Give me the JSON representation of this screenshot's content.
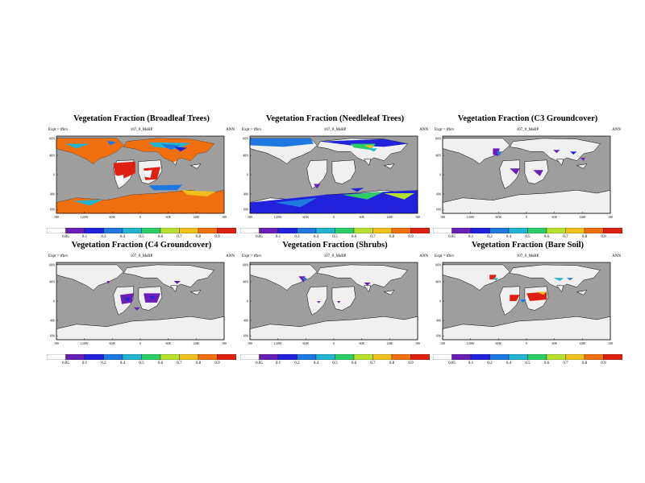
{
  "panels": [
    {
      "title": "Vegetation Fraction (Broadleaf Trees)",
      "expt": "Expt = tfhrv",
      "run": "107_0_MsBP",
      "season": "ANN",
      "lat_labels": [
        "60N",
        "40N",
        "0",
        "40S",
        "60S"
      ],
      "lon_labels": [
        "180",
        "120W",
        "60W",
        "0",
        "60E",
        "120E",
        "180"
      ],
      "colorbar_labels": [
        "0.05",
        "0.1",
        "0.2",
        "0.4",
        "0.5",
        "0.6",
        "0.7",
        "0.8",
        "0.9"
      ],
      "fill": "broadleaf"
    },
    {
      "title": "Vegetation Fraction (Needleleaf Trees)",
      "expt": "Expt = tfhrv",
      "run": "107_0_MsBP",
      "season": "ANN",
      "lat_labels": [
        "60N",
        "40N",
        "0",
        "40S",
        "60S"
      ],
      "lon_labels": [
        "180",
        "120W",
        "60W",
        "0",
        "60E",
        "120E",
        "180"
      ],
      "colorbar_labels": [
        "0.05",
        "0.1",
        "0.2",
        "0.4",
        "0.5",
        "0.6",
        "0.7",
        "0.8",
        "0.9"
      ],
      "fill": "needleleaf"
    },
    {
      "title": "Vegetation Fraction (C3 Groundcover)",
      "expt": "Expt = tfhrv",
      "run": "107_0_MsBP",
      "season": "ANN",
      "lat_labels": [
        "60N",
        "40N",
        "0",
        "40S",
        "60S"
      ],
      "lon_labels": [
        "180",
        "120W",
        "60W",
        "0",
        "60E",
        "120E",
        "180"
      ],
      "colorbar_labels": [
        "0.05",
        "0.1",
        "0.2",
        "0.4",
        "0.5",
        "0.6",
        "0.7",
        "0.8",
        "0.9"
      ],
      "fill": "c3"
    },
    {
      "title": "Vegetation Fraction (C4 Groundcover)",
      "expt": "Expt = tfhrv",
      "run": "107_0_MsBP",
      "season": "ANN",
      "lat_labels": [
        "60N",
        "40N",
        "0",
        "40S",
        "60S"
      ],
      "lon_labels": [
        "180",
        "120W",
        "60W",
        "0",
        "60E",
        "120E",
        "180"
      ],
      "colorbar_labels": [
        "0.05",
        "0.1",
        "0.2",
        "0.4",
        "0.5",
        "0.6",
        "0.7",
        "0.8",
        "0.9"
      ],
      "fill": "c4"
    },
    {
      "title": "Vegetation Fraction (Shrubs)",
      "expt": "Expt = tfhrv",
      "run": "107_0_MsBP",
      "season": "ANN",
      "lat_labels": [
        "60N",
        "40N",
        "0",
        "40S",
        "60S"
      ],
      "lon_labels": [
        "180",
        "120W",
        "60W",
        "0",
        "60E",
        "120E",
        "180"
      ],
      "colorbar_labels": [
        "0.05",
        "0.1",
        "0.2",
        "0.4",
        "0.5",
        "0.6",
        "0.7",
        "0.8",
        "0.9"
      ],
      "fill": "shrubs"
    },
    {
      "title": "Vegetation Fraction (Bare Soil)",
      "expt": "Expt = tfhrv",
      "run": "107_0_MsBP",
      "season": "ANN",
      "lat_labels": [
        "60N",
        "40N",
        "0",
        "40S",
        "60S"
      ],
      "lon_labels": [
        "180",
        "120W",
        "60W",
        "0",
        "60E",
        "120E",
        "180"
      ],
      "colorbar_labels": [
        "0.05",
        "0.1",
        "0.2",
        "0.4",
        "0.5",
        "0.6",
        "0.7",
        "0.8",
        "0.9"
      ],
      "fill": "bare"
    }
  ],
  "colors": {
    "ocean": "#9e9e9e",
    "land": "#f0f0f0",
    "scale": [
      "#ffffff",
      "#6a1fb5",
      "#2222dd",
      "#1f78e0",
      "#22b4d0",
      "#2ecc66",
      "#b8e02e",
      "#f0c020",
      "#f07010",
      "#dd2010"
    ]
  }
}
